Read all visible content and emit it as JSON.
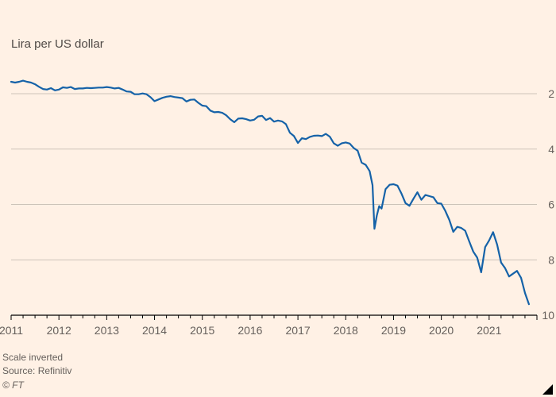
{
  "header": {
    "title": "Lira per US dollar"
  },
  "footer": {
    "note": "Scale inverted",
    "source": "Source: Refinitiv",
    "brand": "© FT"
  },
  "chart_data": {
    "type": "line",
    "title": "Lira per US dollar",
    "xlabel": "",
    "ylabel": "Lira per US dollar",
    "scale_note": "Scale inverted (higher value = weaker lira, plotted downward)",
    "x_unit": "year",
    "xlim": [
      2011,
      2022
    ],
    "ylim": [
      2,
      10
    ],
    "y_inverted_scale": true,
    "grid": "horizontal",
    "legend": "none",
    "y_gridlines": [
      2,
      4,
      6,
      8
    ],
    "y_tick_labels": [
      {
        "value": 2,
        "label": "2"
      },
      {
        "value": 4,
        "label": "4"
      },
      {
        "value": 6,
        "label": "6"
      },
      {
        "value": 8,
        "label": "8"
      },
      {
        "value": 10,
        "label": "10"
      }
    ],
    "x_tick_years": [
      2011,
      2012,
      2013,
      2014,
      2015,
      2016,
      2017,
      2018,
      2019,
      2020,
      2021
    ],
    "minor_tick_step": 0.25,
    "colors": {
      "background": "#fff1e5",
      "line": "#1562a8",
      "gridline": "#cdc4b9",
      "axis": "#000000",
      "text": "#66605c",
      "title": "#4f4a46"
    },
    "series": [
      {
        "name": "Lira per US dollar",
        "points": [
          [
            2011.0,
            1.57
          ],
          [
            2011.083,
            1.6
          ],
          [
            2011.167,
            1.57
          ],
          [
            2011.25,
            1.53
          ],
          [
            2011.333,
            1.57
          ],
          [
            2011.417,
            1.6
          ],
          [
            2011.5,
            1.66
          ],
          [
            2011.583,
            1.75
          ],
          [
            2011.667,
            1.83
          ],
          [
            2011.75,
            1.85
          ],
          [
            2011.833,
            1.8
          ],
          [
            2011.917,
            1.88
          ],
          [
            2012.0,
            1.85
          ],
          [
            2012.083,
            1.77
          ],
          [
            2012.167,
            1.79
          ],
          [
            2012.25,
            1.76
          ],
          [
            2012.333,
            1.83
          ],
          [
            2012.417,
            1.81
          ],
          [
            2012.5,
            1.81
          ],
          [
            2012.583,
            1.79
          ],
          [
            2012.667,
            1.8
          ],
          [
            2012.75,
            1.79
          ],
          [
            2012.833,
            1.78
          ],
          [
            2012.917,
            1.78
          ],
          [
            2013.0,
            1.76
          ],
          [
            2013.083,
            1.78
          ],
          [
            2013.167,
            1.81
          ],
          [
            2013.25,
            1.79
          ],
          [
            2013.333,
            1.85
          ],
          [
            2013.417,
            1.92
          ],
          [
            2013.5,
            1.93
          ],
          [
            2013.583,
            2.02
          ],
          [
            2013.667,
            2.02
          ],
          [
            2013.75,
            1.99
          ],
          [
            2013.833,
            2.02
          ],
          [
            2013.917,
            2.13
          ],
          [
            2014.0,
            2.27
          ],
          [
            2014.083,
            2.21
          ],
          [
            2014.167,
            2.15
          ],
          [
            2014.25,
            2.11
          ],
          [
            2014.333,
            2.09
          ],
          [
            2014.417,
            2.12
          ],
          [
            2014.5,
            2.14
          ],
          [
            2014.583,
            2.16
          ],
          [
            2014.667,
            2.28
          ],
          [
            2014.75,
            2.22
          ],
          [
            2014.833,
            2.21
          ],
          [
            2014.917,
            2.33
          ],
          [
            2015.0,
            2.43
          ],
          [
            2015.083,
            2.45
          ],
          [
            2015.167,
            2.61
          ],
          [
            2015.25,
            2.67
          ],
          [
            2015.333,
            2.66
          ],
          [
            2015.417,
            2.69
          ],
          [
            2015.5,
            2.78
          ],
          [
            2015.583,
            2.92
          ],
          [
            2015.667,
            3.03
          ],
          [
            2015.75,
            2.9
          ],
          [
            2015.833,
            2.89
          ],
          [
            2015.917,
            2.92
          ],
          [
            2016.0,
            2.97
          ],
          [
            2016.083,
            2.94
          ],
          [
            2016.167,
            2.82
          ],
          [
            2016.25,
            2.8
          ],
          [
            2016.333,
            2.95
          ],
          [
            2016.417,
            2.88
          ],
          [
            2016.5,
            3.01
          ],
          [
            2016.583,
            2.97
          ],
          [
            2016.667,
            3.0
          ],
          [
            2016.75,
            3.1
          ],
          [
            2016.833,
            3.41
          ],
          [
            2016.917,
            3.53
          ],
          [
            2017.0,
            3.78
          ],
          [
            2017.083,
            3.61
          ],
          [
            2017.167,
            3.64
          ],
          [
            2017.25,
            3.56
          ],
          [
            2017.333,
            3.52
          ],
          [
            2017.417,
            3.51
          ],
          [
            2017.5,
            3.53
          ],
          [
            2017.583,
            3.45
          ],
          [
            2017.667,
            3.55
          ],
          [
            2017.75,
            3.79
          ],
          [
            2017.833,
            3.88
          ],
          [
            2017.917,
            3.79
          ],
          [
            2018.0,
            3.76
          ],
          [
            2018.083,
            3.8
          ],
          [
            2018.167,
            3.96
          ],
          [
            2018.25,
            4.06
          ],
          [
            2018.333,
            4.49
          ],
          [
            2018.417,
            4.57
          ],
          [
            2018.5,
            4.8
          ],
          [
            2018.56,
            5.3
          ],
          [
            2018.6,
            6.88
          ],
          [
            2018.65,
            6.4
          ],
          [
            2018.7,
            6.06
          ],
          [
            2018.75,
            6.15
          ],
          [
            2018.833,
            5.45
          ],
          [
            2018.917,
            5.29
          ],
          [
            2019.0,
            5.27
          ],
          [
            2019.083,
            5.32
          ],
          [
            2019.167,
            5.61
          ],
          [
            2019.25,
            5.95
          ],
          [
            2019.333,
            6.05
          ],
          [
            2019.417,
            5.79
          ],
          [
            2019.5,
            5.56
          ],
          [
            2019.583,
            5.83
          ],
          [
            2019.667,
            5.66
          ],
          [
            2019.75,
            5.7
          ],
          [
            2019.833,
            5.74
          ],
          [
            2019.917,
            5.95
          ],
          [
            2020.0,
            5.97
          ],
          [
            2020.083,
            6.23
          ],
          [
            2020.167,
            6.56
          ],
          [
            2020.25,
            6.99
          ],
          [
            2020.333,
            6.81
          ],
          [
            2020.417,
            6.85
          ],
          [
            2020.5,
            6.95
          ],
          [
            2020.583,
            7.33
          ],
          [
            2020.667,
            7.7
          ],
          [
            2020.75,
            7.92
          ],
          [
            2020.833,
            8.45
          ],
          [
            2020.917,
            7.54
          ],
          [
            2021.0,
            7.3
          ],
          [
            2021.083,
            7.0
          ],
          [
            2021.167,
            7.45
          ],
          [
            2021.25,
            8.1
          ],
          [
            2021.333,
            8.3
          ],
          [
            2021.417,
            8.6
          ],
          [
            2021.5,
            8.5
          ],
          [
            2021.583,
            8.4
          ],
          [
            2021.667,
            8.65
          ],
          [
            2021.75,
            9.2
          ],
          [
            2021.833,
            9.6
          ]
        ]
      }
    ]
  }
}
